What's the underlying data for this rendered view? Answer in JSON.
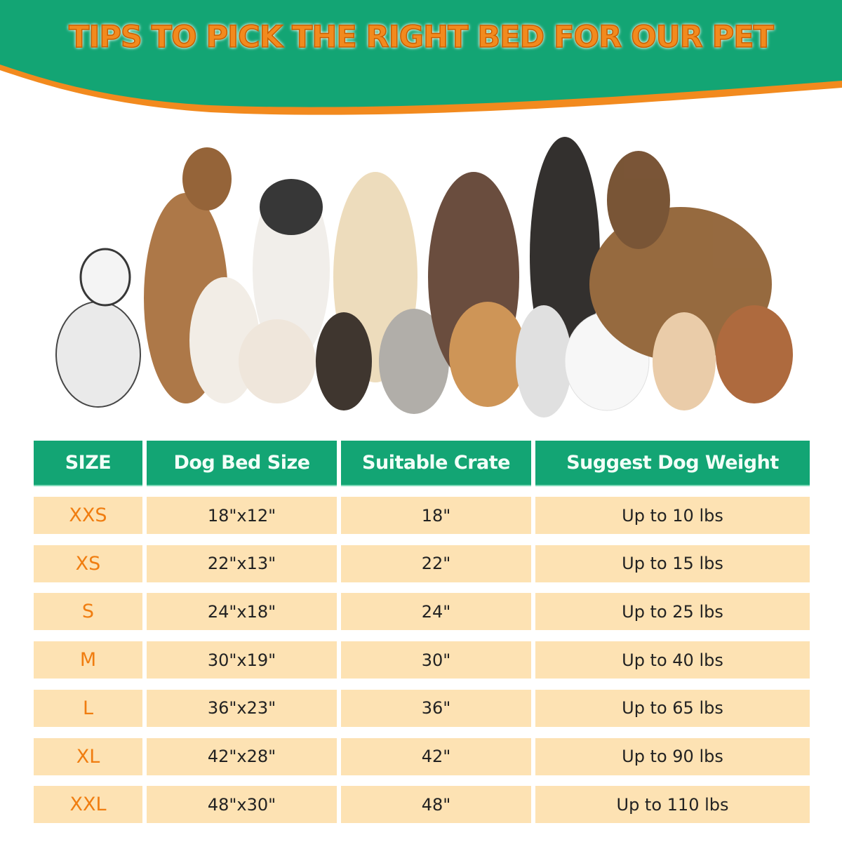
{
  "title": "TIPS TO PICK THE RIGHT BED FOR OUR PET",
  "colors": {
    "green": "#13a574",
    "orange": "#f28a1e",
    "row_bg": "#fde2b3"
  },
  "table": {
    "headers": [
      "SIZE",
      "Dog Bed Size",
      "Suitable Crate",
      "Suggest Dog Weight"
    ],
    "rows": [
      [
        "XXS",
        "18\"x12\"",
        "18\"",
        "Up to 10 lbs"
      ],
      [
        "XS",
        "22\"x13\"",
        "22\"",
        "Up to 15 lbs"
      ],
      [
        "S",
        "24\"x18\"",
        "24\"",
        "Up to 25 lbs"
      ],
      [
        "M",
        "30\"x19\"",
        "30\"",
        "Up to 40 lbs"
      ],
      [
        "L",
        "36\"x23\"",
        "36\"",
        "Up to 65 lbs"
      ],
      [
        "XL",
        "42\"x28\"",
        "42\"",
        "Up to 90 lbs"
      ],
      [
        "XXL",
        "48\"x30\"",
        "48\"",
        "Up to 110 lbs"
      ]
    ]
  }
}
